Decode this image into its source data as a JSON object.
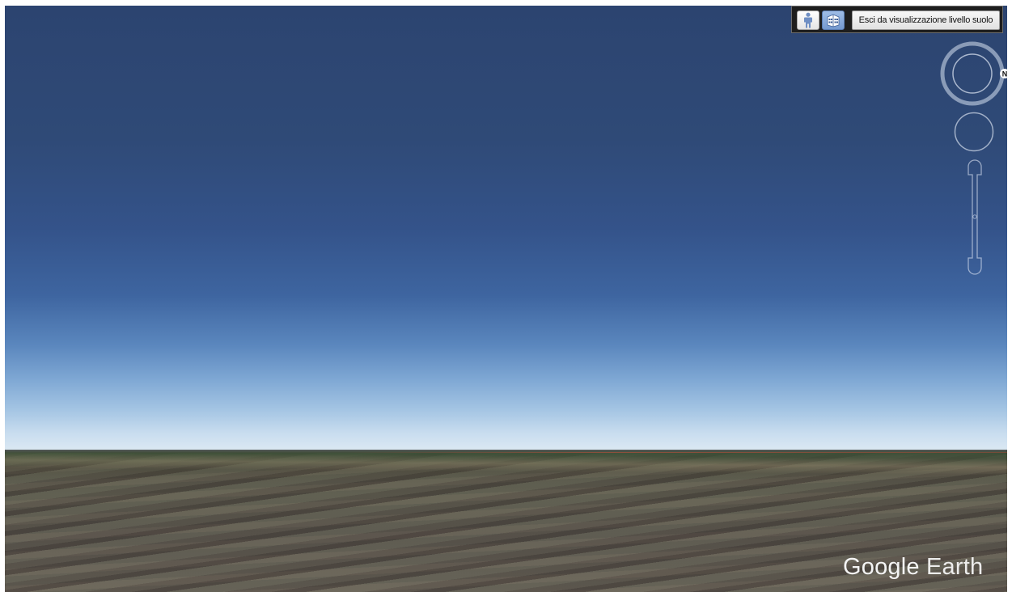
{
  "toolbar": {
    "person_icon": "street-view-person-icon",
    "building_icon": "3d-buildings-icon",
    "exit_ground_label": "Esci da visualizzazione livello suolo"
  },
  "navigation": {
    "compass_label": "N",
    "compass_icon": "compass-ring-icon",
    "look_icon": "look-joystick-icon",
    "zoom_icon": "zoom-slider-icon"
  },
  "logo": {
    "word1": "Google",
    "word2": "Earth"
  },
  "colors": {
    "sky_top": "#2c4470",
    "sky_horizon": "#dce9f3",
    "ground": "#6b6a5a",
    "toolbar_bg": "#1e1e1e",
    "active_button": "#7499cf"
  }
}
